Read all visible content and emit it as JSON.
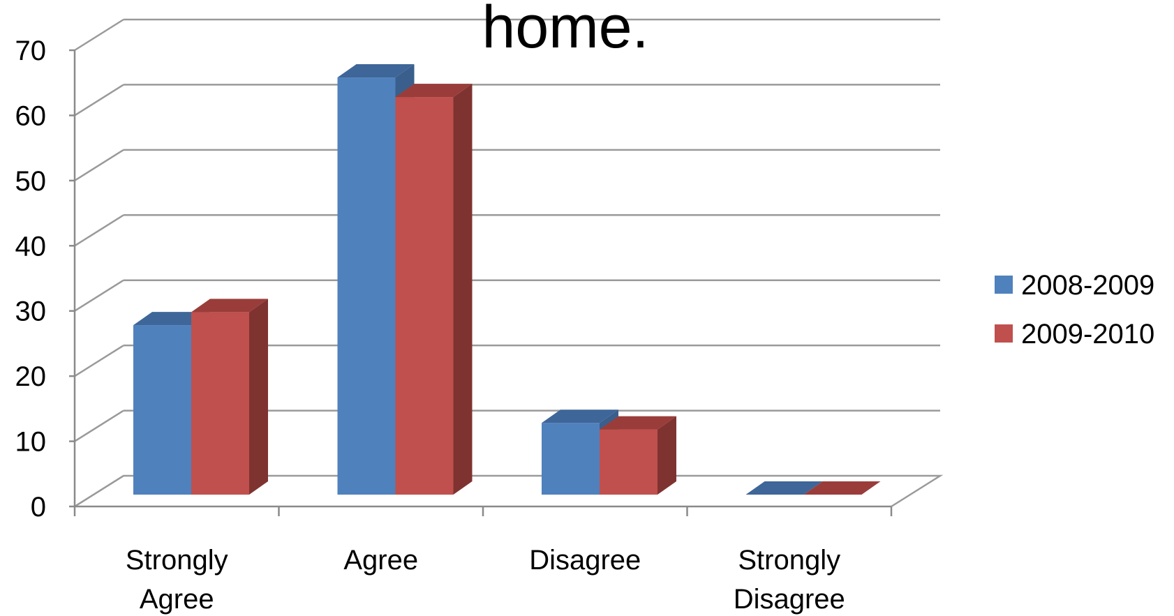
{
  "chart_data": {
    "type": "bar",
    "style": "3d-clustered-column",
    "title": "home.",
    "xlabel": "",
    "ylabel": "",
    "categories": [
      [
        "Strongly",
        "Agree"
      ],
      [
        "Agree"
      ],
      [
        "Disagree"
      ],
      [
        "Strongly",
        "Disagree"
      ]
    ],
    "series": [
      {
        "name": "2008-2009",
        "values": [
          26,
          64,
          11,
          0
        ],
        "color": "#4f81bd",
        "side_color": "#3a5f8c",
        "top_color": "#3e6699"
      },
      {
        "name": "2009-2010",
        "values": [
          28,
          61,
          10,
          0
        ],
        "color": "#c0504d",
        "side_color": "#7f3331",
        "top_color": "#9a3d3a"
      }
    ],
    "ylim": [
      0,
      70
    ],
    "yticks": [
      0,
      10,
      20,
      30,
      40,
      50,
      60,
      70
    ],
    "grid": true,
    "legend": "right"
  }
}
